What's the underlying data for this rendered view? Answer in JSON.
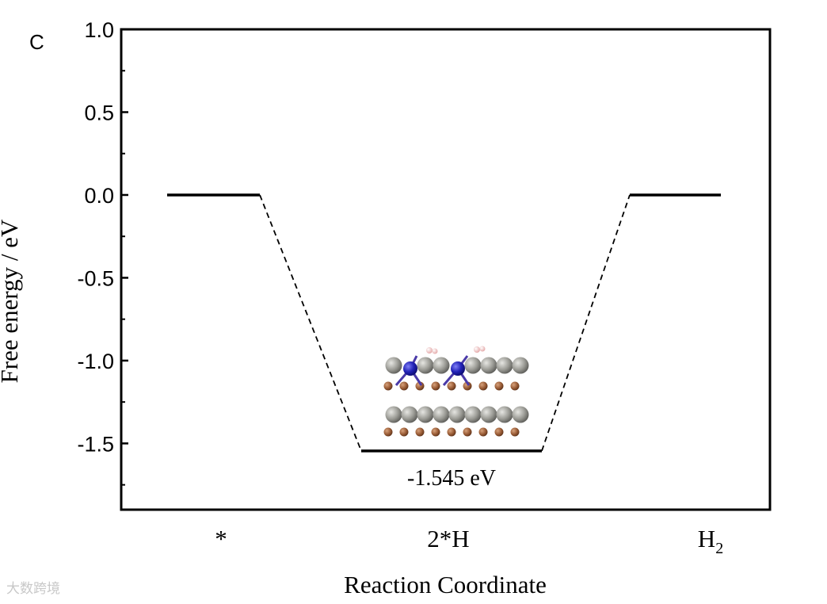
{
  "panel_label": "C",
  "watermark": "大数跨境",
  "chart_data": {
    "type": "line",
    "title": "",
    "xlabel": "Reaction Coordinate",
    "ylabel": "Free energy / eV",
    "ylim": [
      -1.9,
      1.0
    ],
    "yticks": [
      "1.0",
      "0.5",
      "0.0",
      "-0.5",
      "-1.0",
      "-1.5"
    ],
    "ytick_values": [
      1.0,
      0.5,
      0.0,
      -0.5,
      -1.0,
      -1.5
    ],
    "grid": false,
    "legend": "none",
    "states": [
      {
        "label": "*",
        "value": 0.0
      },
      {
        "label": "2*H",
        "value": -1.545
      },
      {
        "label": "H",
        "sub": "2",
        "value": 0.0
      }
    ],
    "annotation": "-1.545 eV",
    "inset": "adsorption-structure"
  }
}
